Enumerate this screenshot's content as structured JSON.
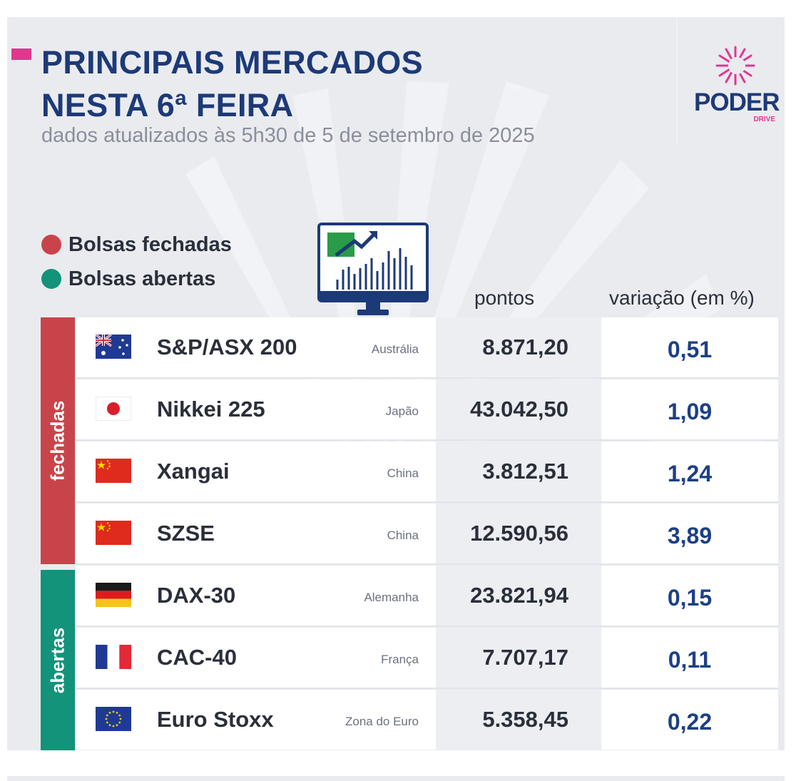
{
  "header": {
    "title_line1": "PRINCIPAIS MERCADOS",
    "title_line2": "NESTA 6ª FEIRA",
    "subtitle": "dados atualizados às 5h30 de 5 de setembro de 2025"
  },
  "logo": {
    "word": "PODER",
    "sub": "DRIVE"
  },
  "legend": {
    "closed": {
      "label": "Bolsas fechadas",
      "color": "#c9444a"
    },
    "open": {
      "label": "Bolsas abertas",
      "color": "#12937a"
    }
  },
  "columns": {
    "points": "pontos",
    "variation": "variação (em %)"
  },
  "groups": [
    {
      "label": "fechadas",
      "color": "#c9444a"
    },
    {
      "label": "abertas",
      "color": "#12937a"
    }
  ],
  "rows": [
    {
      "index": "S&P/ASX 200",
      "country": "Austrália",
      "points": "8.871,20",
      "variation": "0,51",
      "flag": "australia-flag-icon"
    },
    {
      "index": "Nikkei 225",
      "country": "Japão",
      "points": "43.042,50",
      "variation": "1,09",
      "flag": "japan-flag-icon"
    },
    {
      "index": "Xangai",
      "country": "China",
      "points": "3.812,51",
      "variation": "1,24",
      "flag": "china-flag-icon"
    },
    {
      "index": "SZSE",
      "country": "China",
      "points": "12.590,56",
      "variation": "3,89",
      "flag": "china-flag-icon"
    },
    {
      "index": "DAX-30",
      "country": "Alemanha",
      "points": "23.821,94",
      "variation": "0,15",
      "flag": "germany-flag-icon"
    },
    {
      "index": "CAC-40",
      "country": "França",
      "points": "7.707,17",
      "variation": "0,11",
      "flag": "france-flag-icon"
    },
    {
      "index": "Euro Stoxx",
      "country": "Zona do Euro",
      "points": "5.358,45",
      "variation": "0,22",
      "flag": "eu-flag-icon"
    }
  ],
  "colors": {
    "title": "#1d3a78",
    "accent": "#e0388f",
    "variation": "#1d3f86"
  }
}
